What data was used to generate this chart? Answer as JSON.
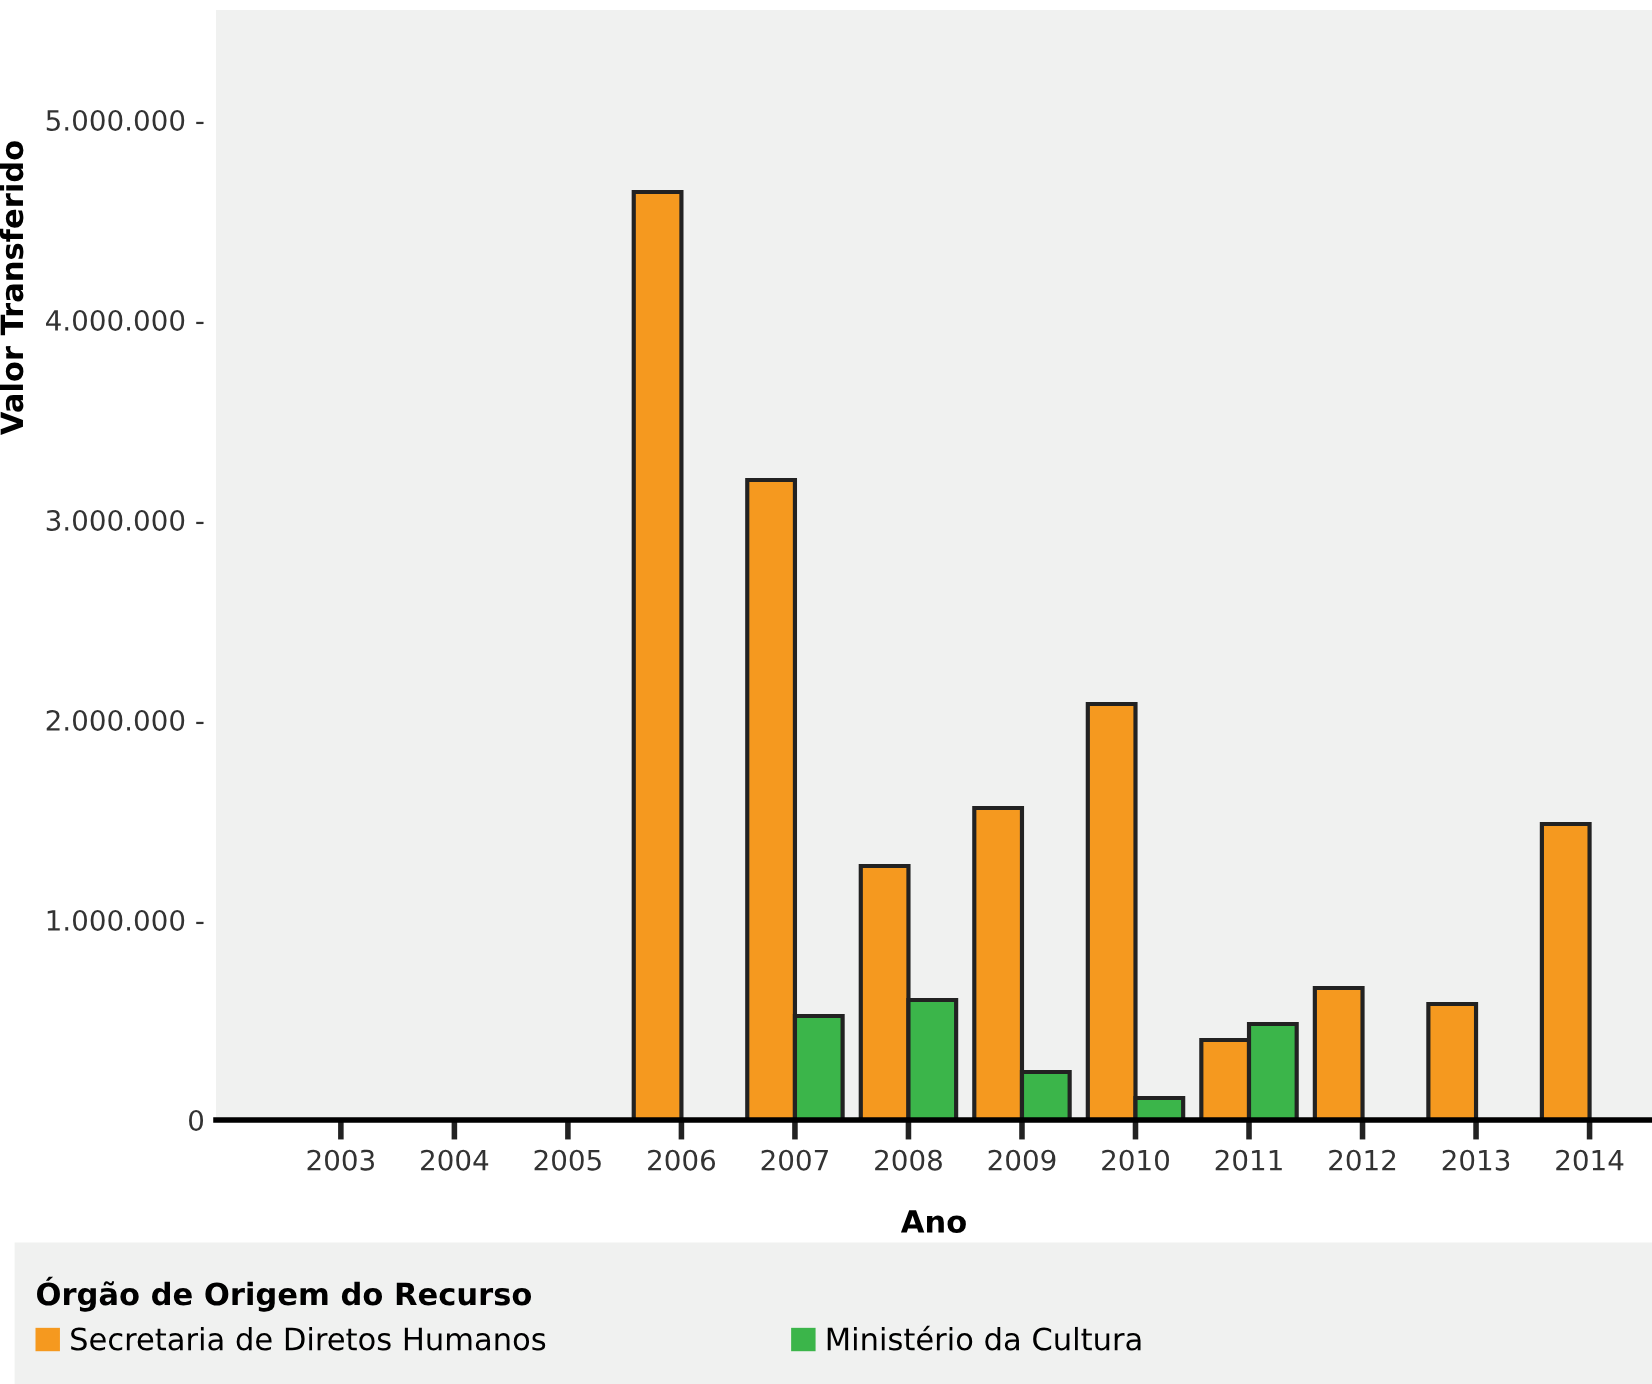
{
  "chart_data": {
    "type": "bar",
    "xlabel": "Ano",
    "ylabel": "Valor Transferido",
    "legend_title": "Órgão de Origem do Recurso",
    "categories": [
      "2003",
      "2004",
      "2005",
      "2006",
      "2007",
      "2008",
      "2009",
      "2010",
      "2011",
      "2012",
      "2013",
      "2014"
    ],
    "series": [
      {
        "name": "Secretaria de Diretos Humanos",
        "color": "#f5991f",
        "values": [
          null,
          null,
          null,
          4640000,
          3200000,
          1270000,
          1560000,
          2080000,
          400000,
          660000,
          580000,
          1480000
        ]
      },
      {
        "name": "Ministério da Cultura",
        "color": "#3bb54a",
        "values": [
          null,
          null,
          null,
          null,
          520000,
          600000,
          240000,
          110000,
          480000,
          null,
          null,
          null
        ]
      }
    ],
    "ylim": [
      0,
      5550000
    ],
    "yticks": [
      {
        "value": 0,
        "label": "0"
      },
      {
        "value": 1000000,
        "label": "1.000.000 -"
      },
      {
        "value": 2000000,
        "label": "2.000.000 -"
      },
      {
        "value": 3000000,
        "label": "3.000.000 -"
      },
      {
        "value": 4000000,
        "label": "4.000.000 -"
      },
      {
        "value": 5000000,
        "label": "5.000.000 -"
      }
    ],
    "grid": false,
    "legend": "bottom"
  }
}
